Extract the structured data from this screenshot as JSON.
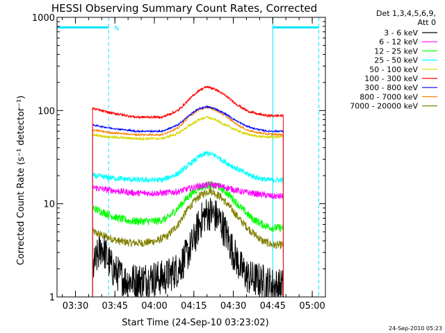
{
  "chart_data": {
    "type": "line",
    "title": "HESSI Observing Summary Count Rates, Corrected",
    "xlabel": "Start Time (24-Sep-10 03:23:02)",
    "ylabel": "Corrected Count Rate (s⁻¹ detector⁻¹)",
    "y_scale": "log",
    "ylim": [
      1,
      1000
    ],
    "xlim_minutes_after_0323": [
      0,
      102
    ],
    "x_ticks": [
      {
        "label": "03:30",
        "t": 7
      },
      {
        "label": "03:45",
        "t": 22
      },
      {
        "label": "04:00",
        "t": 37
      },
      {
        "label": "04:15",
        "t": 52
      },
      {
        "label": "04:30",
        "t": 67
      },
      {
        "label": "04:45",
        "t": 82
      },
      {
        "label": "05:00",
        "t": 97
      }
    ],
    "y_ticks": [
      {
        "label": "1",
        "v": 1
      },
      {
        "label": "10",
        "v": 10
      },
      {
        "label": "100",
        "v": 100
      },
      {
        "label": "1000",
        "v": 1000
      }
    ],
    "legend_header": [
      "Det 1,3,4,5,6,9,",
      "Att 0"
    ],
    "legend_position": "right",
    "footer_timestamp": "24-Sep-2010 05:23",
    "annotations": [
      {
        "text": "N",
        "t": 21.8,
        "v": 780
      }
    ],
    "data_interval_minutes": [
      13.5,
      86.0
    ],
    "night_bar": {
      "v": 780,
      "segments": [
        [
          0,
          19.6
        ],
        [
          82.0,
          99.5
        ]
      ]
    },
    "night_markers": {
      "solid": [
        82.0
      ],
      "dashed": [
        19.6,
        99.5
      ]
    },
    "series": [
      {
        "name": "3 - 6 keV",
        "color": "#000000",
        "noise": 0.45,
        "t": [
          13.5,
          17,
          21,
          26,
          31,
          36,
          41,
          46,
          49,
          52,
          54,
          56,
          58,
          60,
          62,
          64,
          67,
          70,
          73,
          77,
          80,
          83,
          86
        ],
        "v": [
          2.0,
          3.5,
          2.0,
          1.5,
          1.5,
          1.6,
          1.6,
          2.0,
          2.7,
          4.0,
          6.0,
          7.5,
          8.0,
          7.5,
          6.5,
          5.0,
          3.0,
          2.0,
          1.6,
          1.5,
          1.4,
          1.3,
          1.3
        ]
      },
      {
        "name": "6 - 12 keV",
        "color": "#ff00ff",
        "noise": 0.08,
        "t": [
          13.5,
          20,
          30,
          40,
          46,
          50,
          54,
          58,
          62,
          66,
          70,
          74,
          78,
          82,
          86
        ],
        "v": [
          15,
          14,
          13,
          13,
          13.5,
          14.5,
          15.5,
          16,
          15.5,
          14.5,
          13.5,
          13,
          12.5,
          12,
          12
        ]
      },
      {
        "name": "12 - 25 keV",
        "color": "#00ff00",
        "noise": 0.1,
        "t": [
          13.5,
          18,
          23,
          28,
          33,
          38,
          42,
          46,
          50,
          54,
          58,
          62,
          66,
          70,
          74,
          78,
          82,
          86
        ],
        "v": [
          9,
          8,
          7,
          6.5,
          6.5,
          6.5,
          7,
          9,
          12,
          15,
          16,
          15,
          12,
          9,
          7,
          6,
          5.5,
          5.5
        ]
      },
      {
        "name": "25 - 50 keV",
        "color": "#00ffff",
        "noise": 0.07,
        "t": [
          13.5,
          20,
          30,
          40,
          46,
          50,
          54,
          57,
          60,
          64,
          68,
          72,
          76,
          80,
          86
        ],
        "v": [
          20,
          19,
          18,
          18,
          21,
          26,
          32,
          35,
          33,
          28,
          24,
          21,
          19,
          18,
          18
        ]
      },
      {
        "name": "50 - 100 keV",
        "color": "#d7d700",
        "noise": 0.03,
        "t": [
          13.5,
          20,
          30,
          40,
          46,
          50,
          54,
          57,
          60,
          64,
          68,
          72,
          76,
          80,
          86
        ],
        "v": [
          55,
          52,
          50,
          50,
          57,
          68,
          80,
          85,
          80,
          70,
          62,
          56,
          53,
          52,
          52
        ]
      },
      {
        "name": "100 - 300 keV",
        "color": "#ff0000",
        "noise": 0.03,
        "t": [
          13.5,
          20,
          30,
          40,
          46,
          50,
          54,
          57,
          60,
          64,
          68,
          72,
          76,
          80,
          86
        ],
        "v": [
          105,
          95,
          85,
          85,
          100,
          130,
          165,
          180,
          170,
          145,
          118,
          100,
          92,
          88,
          88
        ]
      },
      {
        "name": "300 - 800 keV",
        "color": "#0000ff",
        "noise": 0.02,
        "t": [
          13.5,
          20,
          30,
          40,
          46,
          50,
          54,
          57,
          60,
          64,
          68,
          72,
          76,
          80,
          86
        ],
        "v": [
          70,
          65,
          60,
          60,
          70,
          88,
          105,
          110,
          105,
          92,
          78,
          68,
          63,
          60,
          60
        ]
      },
      {
        "name": "800 - 7000 keV",
        "color": "#ff8000",
        "noise": 0.02,
        "t": [
          13.5,
          20,
          30,
          40,
          46,
          50,
          54,
          57,
          60,
          64,
          68,
          72,
          76,
          80,
          86
        ],
        "v": [
          62,
          58,
          55,
          55,
          65,
          85,
          102,
          108,
          102,
          88,
          72,
          62,
          58,
          56,
          55
        ]
      },
      {
        "name": "7000 - 20000 keV",
        "color": "#808000",
        "noise": 0.1,
        "t": [
          13.5,
          18,
          23,
          28,
          33,
          38,
          42,
          46,
          50,
          54,
          58,
          62,
          66,
          70,
          74,
          78,
          82,
          86
        ],
        "v": [
          5,
          4.5,
          4,
          3.8,
          3.8,
          4,
          4.5,
          6,
          9,
          12,
          14,
          12,
          9,
          6.5,
          5,
          4,
          3.6,
          3.6
        ]
      }
    ]
  }
}
